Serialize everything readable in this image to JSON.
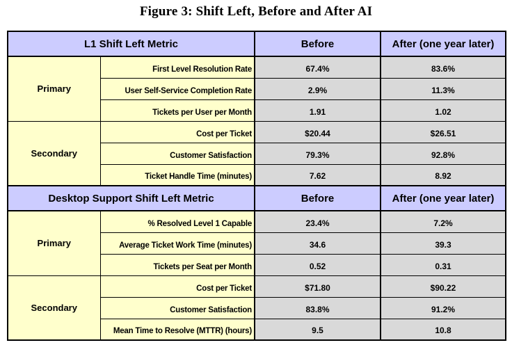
{
  "figure": {
    "title": "Figure 3: Shift Left, Before and After AI"
  },
  "table": {
    "columns": {
      "before": "Before",
      "after": "After (one year later)"
    },
    "sections": [
      {
        "header": "L1 Shift Left Metric",
        "groups": [
          {
            "label": "Primary",
            "rows": [
              {
                "metric": "First Level Resolution Rate",
                "before": "67.4%",
                "after": "83.6%"
              },
              {
                "metric": "User Self-Service Completion Rate",
                "before": "2.9%",
                "after": "11.3%"
              },
              {
                "metric": "Tickets per User per Month",
                "before": "1.91",
                "after": "1.02"
              }
            ]
          },
          {
            "label": "Secondary",
            "rows": [
              {
                "metric": "Cost per Ticket",
                "before": "$20.44",
                "after": "$26.51"
              },
              {
                "metric": "Customer Satisfaction",
                "before": "79.3%",
                "after": "92.8%"
              },
              {
                "metric": "Ticket Handle Time (minutes)",
                "before": "7.62",
                "after": "8.92"
              }
            ]
          }
        ]
      },
      {
        "header": "Desktop Support Shift Left Metric",
        "groups": [
          {
            "label": "Primary",
            "rows": [
              {
                "metric": "% Resolved Level 1 Capable",
                "before": "23.4%",
                "after": "7.2%"
              },
              {
                "metric": "Average Ticket Work Time (minutes)",
                "before": "34.6",
                "after": "39.3"
              },
              {
                "metric": "Tickets per Seat per Month",
                "before": "0.52",
                "after": "0.31"
              }
            ]
          },
          {
            "label": "Secondary",
            "rows": [
              {
                "metric": "Cost per Ticket",
                "before": "$71.80",
                "after": "$90.22"
              },
              {
                "metric": "Customer Satisfaction",
                "before": "83.8%",
                "after": "91.2%"
              },
              {
                "metric": "Mean Time to Resolve (MTTR) (hours)",
                "before": "9.5",
                "after": "10.8"
              }
            ]
          }
        ]
      }
    ]
  },
  "colors": {
    "header_bg": "#ccccff",
    "group_bg": "#ffffcc",
    "value_bg": "#d9d9d9",
    "border": "#000000",
    "text": "#000000"
  }
}
